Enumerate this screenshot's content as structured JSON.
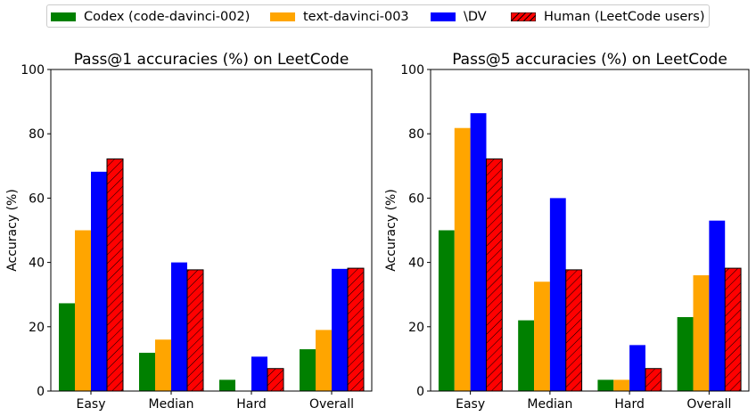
{
  "legend": {
    "items": [
      {
        "label": "Codex (code-davinci-002)",
        "color": "#008000",
        "hatch": false
      },
      {
        "label": "text-davinci-003",
        "color": "#ffa500",
        "hatch": false
      },
      {
        "label": "\\DV",
        "color": "#0000ff",
        "hatch": false
      },
      {
        "label": "Human (LeetCode users)",
        "color": "#ff0000",
        "hatch": true
      }
    ]
  },
  "chart_data": [
    {
      "type": "bar",
      "title": "Pass@1 accuracies (%) on LeetCode",
      "xlabel": "",
      "ylabel": "Accuracy (%)",
      "ylim": [
        0,
        100
      ],
      "yticks": [
        0,
        20,
        40,
        60,
        80,
        100
      ],
      "categories": [
        "Easy",
        "Median",
        "Hard",
        "Overall"
      ],
      "series": [
        {
          "name": "Codex (code-davinci-002)",
          "color": "#008000",
          "values": [
            27.3,
            11.9,
            3.5,
            13.0
          ]
        },
        {
          "name": "text-davinci-003",
          "color": "#ffa500",
          "values": [
            50.0,
            16.0,
            0.0,
            19.0
          ]
        },
        {
          "name": "\\DV",
          "color": "#0000ff",
          "values": [
            68.2,
            40.0,
            10.7,
            38.0
          ]
        },
        {
          "name": "Human (LeetCode users)",
          "color": "#ff0000",
          "hatch": true,
          "values": [
            72.2,
            37.7,
            7.0,
            38.2
          ]
        }
      ],
      "grid": false
    },
    {
      "type": "bar",
      "title": "Pass@5 accuracies (%) on LeetCode",
      "xlabel": "",
      "ylabel": "Accuracy (%)",
      "ylim": [
        0,
        100
      ],
      "yticks": [
        0,
        20,
        40,
        60,
        80,
        100
      ],
      "categories": [
        "Easy",
        "Median",
        "Hard",
        "Overall"
      ],
      "series": [
        {
          "name": "Codex (code-davinci-002)",
          "color": "#008000",
          "values": [
            50.0,
            22.0,
            3.5,
            23.0
          ]
        },
        {
          "name": "text-davinci-003",
          "color": "#ffa500",
          "values": [
            81.8,
            34.0,
            3.5,
            36.0
          ]
        },
        {
          "name": "\\DV",
          "color": "#0000ff",
          "values": [
            86.4,
            60.0,
            14.3,
            53.0
          ]
        },
        {
          "name": "Human (LeetCode users)",
          "color": "#ff0000",
          "hatch": true,
          "values": [
            72.2,
            37.7,
            7.0,
            38.2
          ]
        }
      ],
      "grid": false
    }
  ]
}
